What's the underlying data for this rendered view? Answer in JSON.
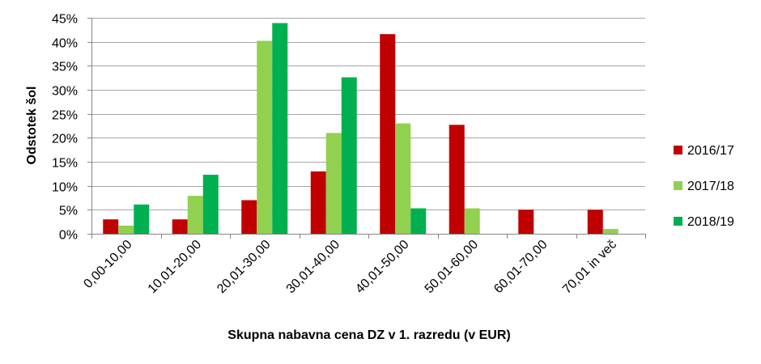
{
  "chart_data": {
    "type": "bar",
    "categories": [
      "0,00-10,00",
      "10,01-20,00",
      "20,01-30,00",
      "30,01-40,00",
      "40,01-50,00",
      "50,01-60,00",
      "60,01-70,00",
      "70,01 in več"
    ],
    "series": [
      {
        "name": "2016/17",
        "color": "#C00000",
        "values": [
          3,
          3,
          7,
          13,
          41.6,
          22.7,
          5,
          5
        ]
      },
      {
        "name": "2017/18",
        "color": "#92D050",
        "values": [
          1.7,
          7.9,
          40.2,
          21,
          23,
          5.3,
          0,
          1
        ]
      },
      {
        "name": "2018/19",
        "color": "#00B050",
        "values": [
          6.1,
          12.3,
          43.9,
          32.6,
          5.3,
          0,
          0,
          0
        ]
      }
    ],
    "xlabel": "Skupna nabavna cena DZ v 1. razredu (v EUR)",
    "ylabel": "Odstotek šol",
    "ylim": [
      0,
      45
    ],
    "yticks": [
      "0%",
      "5%",
      "10%",
      "15%",
      "20%",
      "25%",
      "30%",
      "35%",
      "40%",
      "45%"
    ],
    "grid": true,
    "legend_position": "right"
  }
}
